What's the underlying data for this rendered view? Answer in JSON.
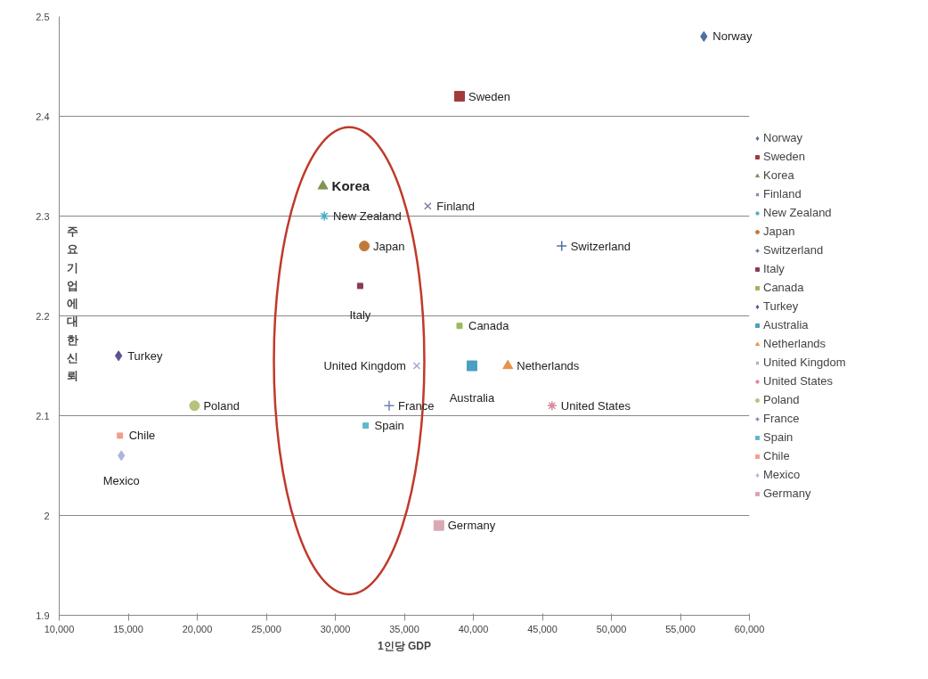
{
  "chart_data": {
    "type": "scatter",
    "xlabel": "1인당 GDP",
    "ylabel": "주요기업에 대한 신뢰",
    "xlim": [
      10000,
      60000
    ],
    "ylim": [
      1.9,
      2.5
    ],
    "xticks": [
      {
        "value": 10000,
        "label": "10,000"
      },
      {
        "value": 15000,
        "label": "15,000"
      },
      {
        "value": 20000,
        "label": "20,000"
      },
      {
        "value": 25000,
        "label": "25,000"
      },
      {
        "value": 30000,
        "label": "30,000"
      },
      {
        "value": 35000,
        "label": "35,000"
      },
      {
        "value": 40000,
        "label": "40,000"
      },
      {
        "value": 45000,
        "label": "45,000"
      },
      {
        "value": 50000,
        "label": "50,000"
      },
      {
        "value": 55000,
        "label": "55,000"
      },
      {
        "value": 60000,
        "label": "60,000"
      }
    ],
    "yticks": [
      1.9,
      2,
      2.1,
      2.2,
      2.3,
      2.4,
      2.5
    ],
    "grid": "y",
    "legend": "right",
    "series": [
      {
        "name": "Norway",
        "color": "#4a6fa5",
        "marker": "diamond",
        "x": [
          56700
        ],
        "values": [
          2.48
        ]
      },
      {
        "name": "Sweden",
        "color": "#a33a3a",
        "marker": "square",
        "x": [
          39000
        ],
        "values": [
          2.42
        ]
      },
      {
        "name": "Korea",
        "color": "#7f9556",
        "marker": "triangle",
        "x": [
          29100
        ],
        "values": [
          2.33
        ]
      },
      {
        "name": "Finland",
        "color": "#7a7fa8",
        "marker": "x",
        "x": [
          36700
        ],
        "values": [
          2.31
        ]
      },
      {
        "name": "New Zealand",
        "color": "#4bacc6",
        "marker": "cross",
        "x": [
          29200
        ],
        "values": [
          2.3
        ]
      },
      {
        "name": "Japan",
        "color": "#c07a3a",
        "marker": "circle",
        "x": [
          32100
        ],
        "values": [
          2.27
        ]
      },
      {
        "name": "Switzerland",
        "color": "#4f6fa8",
        "marker": "cross",
        "x": [
          46400
        ],
        "values": [
          2.27
        ]
      },
      {
        "name": "Italy",
        "color": "#8b3a5a",
        "marker": "square",
        "x": [
          31800
        ],
        "values": [
          2.23
        ]
      },
      {
        "name": "Canada",
        "color": "#9bbb59",
        "marker": "square",
        "x": [
          39000
        ],
        "values": [
          2.19
        ]
      },
      {
        "name": "Turkey",
        "color": "#5f4f8f",
        "marker": "diamond",
        "x": [
          14300
        ],
        "values": [
          2.16
        ]
      },
      {
        "name": "Australia",
        "color": "#4aa0c0",
        "marker": "square",
        "x": [
          39900
        ],
        "values": [
          2.15
        ]
      },
      {
        "name": "Netherlands",
        "color": "#e8914a",
        "marker": "triangle",
        "x": [
          42500
        ],
        "values": [
          2.15
        ]
      },
      {
        "name": "United Kingdom",
        "color": "#a9a3d1",
        "marker": "x",
        "x": [
          35900
        ],
        "values": [
          2.15
        ]
      },
      {
        "name": "United States",
        "color": "#d9879b",
        "marker": "cross",
        "x": [
          45700
        ],
        "values": [
          2.11
        ]
      },
      {
        "name": "Poland",
        "color": "#b4c47c",
        "marker": "circle",
        "x": [
          19800
        ],
        "values": [
          2.11
        ]
      },
      {
        "name": "France",
        "color": "#6f83b3",
        "marker": "cross",
        "x": [
          33900
        ],
        "values": [
          2.11
        ]
      },
      {
        "name": "Spain",
        "color": "#5fb8cc",
        "marker": "square",
        "x": [
          32200
        ],
        "values": [
          2.09
        ]
      },
      {
        "name": "Chile",
        "color": "#f0a08a",
        "marker": "square",
        "x": [
          14400
        ],
        "values": [
          2.08
        ]
      },
      {
        "name": "Mexico",
        "color": "#b0b4dc",
        "marker": "diamond",
        "x": [
          14500
        ],
        "values": [
          2.06
        ]
      },
      {
        "name": "Germany",
        "color": "#d8a8b4",
        "marker": "square",
        "x": [
          37500
        ],
        "values": [
          1.99
        ]
      }
    ]
  }
}
